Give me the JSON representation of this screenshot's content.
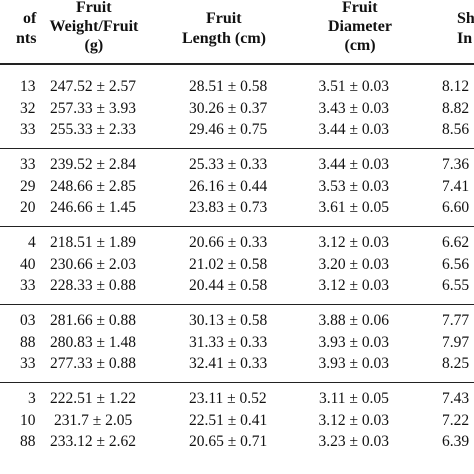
{
  "table": {
    "columns": [
      {
        "id": "count",
        "lines": [
          "of",
          "nts"
        ]
      },
      {
        "id": "weight",
        "lines": [
          "Fruit",
          "Weight/Fruit",
          "(g)"
        ]
      },
      {
        "id": "length",
        "lines": [
          "Fruit",
          "Length (cm)"
        ]
      },
      {
        "id": "diameter",
        "lines": [
          "Fruit",
          "Diameter",
          "(cm)"
        ]
      },
      {
        "id": "shape",
        "lines": [
          "Sh",
          "In"
        ]
      }
    ],
    "groups": [
      {
        "rows": [
          [
            "13",
            "247.52 ± 2.57",
            "28.51 ± 0.58",
            "3.51 ± 0.03",
            "8.12"
          ],
          [
            "32",
            "257.33 ± 3.93",
            "30.26 ± 0.37",
            "3.43 ± 0.03",
            "8.82"
          ],
          [
            "33",
            "255.33 ± 2.33",
            "29.46 ± 0.75",
            "3.44 ± 0.03",
            "8.56"
          ]
        ]
      },
      {
        "rows": [
          [
            "33",
            "239.52 ± 2.84",
            "25.33 ± 0.33",
            "3.44 ± 0.03",
            "7.36"
          ],
          [
            "29",
            "248.66 ± 2.85",
            "26.16 ± 0.44",
            "3.53 ± 0.03",
            "7.41"
          ],
          [
            "20",
            "246.66 ± 1.45",
            "23.83 ± 0.73",
            "3.61 ± 0.05",
            "6.60"
          ]
        ]
      },
      {
        "rows": [
          [
            "4",
            "218.51 ± 1.89",
            "20.66 ± 0.33",
            "3.12 ± 0.03",
            "6.62"
          ],
          [
            "40",
            "230.66 ± 2.03",
            "21.02 ± 0.58",
            "3.20 ± 0.03",
            "6.56"
          ],
          [
            "33",
            "228.33 ± 0.88",
            "20.44 ± 0.58",
            "3.12 ± 0.03",
            "6.55"
          ]
        ]
      },
      {
        "rows": [
          [
            "03",
            "281.66 ± 0.88",
            "30.13 ± 0.58",
            "3.88 ± 0.06",
            "7.77"
          ],
          [
            "88",
            "280.83 ± 1.48",
            "31.33 ± 0.33",
            "3.93 ± 0.03",
            "7.97"
          ],
          [
            "33",
            "277.33 ± 0.88",
            "32.41 ± 0.33",
            "3.93 ± 0.03",
            "8.25"
          ]
        ]
      },
      {
        "rows": [
          [
            "3",
            "222.51 ± 1.22",
            "23.11 ± 0.52",
            "3.11 ± 0.05",
            "7.43"
          ],
          [
            "10",
            "231.7 ± 2.05",
            "22.51 ± 0.41",
            "3.12 ± 0.03",
            "7.22"
          ],
          [
            "88",
            "233.12 ± 2.62",
            "20.65 ± 0.71",
            "3.23 ± 0.03",
            "6.39"
          ]
        ]
      }
    ]
  }
}
